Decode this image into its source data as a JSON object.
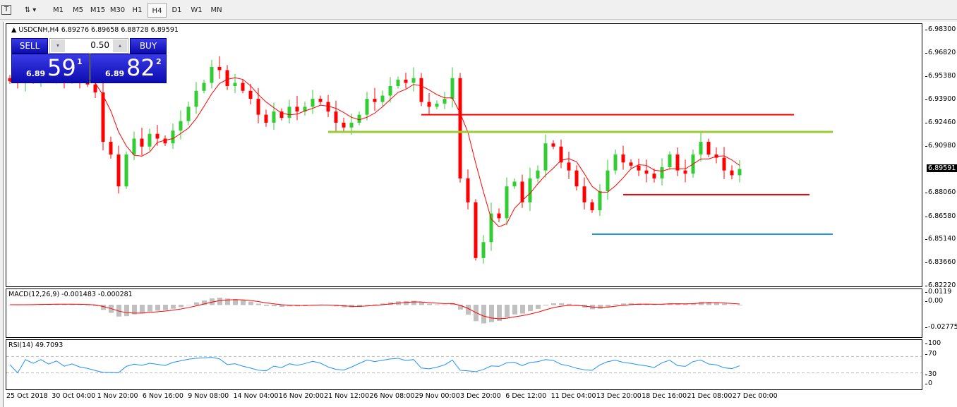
{
  "toolbar": {
    "timeframes": [
      "M1",
      "M5",
      "M15",
      "M30",
      "H1",
      "H4",
      "D1",
      "W1",
      "MN"
    ],
    "active": "H4"
  },
  "chart": {
    "symbol_info": "USDCNH,H4  6.89276 6.89658 6.88728 6.89591",
    "trade_panel": {
      "sell_label": "SELL",
      "buy_label": "BUY",
      "lot": "0.50",
      "sell_big": "6.89",
      "sell_digits": "59",
      "sell_sup": "1",
      "buy_big": "6.89",
      "buy_digits": "82",
      "buy_sup": "2"
    },
    "price_axis": [
      "6.98300",
      "6.96820",
      "6.95380",
      "6.93900",
      "6.92460",
      "6.90980",
      "6.88060",
      "6.86580",
      "6.85140",
      "6.83660",
      "6.82220"
    ],
    "current_price": "6.89591",
    "price_range": [
      6.8222,
      6.983
    ],
    "closes": [
      6.951,
      6.95,
      6.953,
      6.952,
      6.955,
      6.953,
      6.956,
      6.952,
      6.954,
      6.951,
      6.949,
      6.944,
      6.913,
      6.905,
      6.885,
      6.905,
      6.915,
      6.91,
      6.918,
      6.915,
      6.912,
      6.92,
      6.926,
      6.935,
      6.945,
      6.95,
      6.96,
      6.958,
      6.948,
      6.95,
      6.945,
      6.94,
      6.93,
      6.925,
      6.932,
      6.928,
      6.935,
      6.932,
      6.935,
      6.94,
      6.938,
      6.932,
      6.925,
      6.922,
      6.925,
      6.93,
      6.94,
      6.938,
      6.942,
      6.948,
      6.952,
      6.95,
      6.953,
      6.938,
      6.935,
      6.937,
      6.94,
      6.953,
      6.89,
      6.875,
      6.84,
      6.85,
      6.868,
      6.865,
      6.885,
      6.888,
      6.875,
      6.89,
      6.895,
      6.912,
      6.91,
      6.9,
      6.895,
      6.885,
      6.875,
      6.87,
      6.882,
      6.895,
      6.905,
      6.9,
      6.898,
      6.895,
      6.893,
      6.89,
      6.897,
      6.905,
      6.895,
      6.893,
      6.905,
      6.913,
      6.905,
      6.903,
      6.895,
      6.892,
      6.89591
    ],
    "levels": [
      {
        "price": 6.93,
        "color": "#ff0000",
        "from": 53,
        "to": 101
      },
      {
        "price": 6.9192,
        "color": "#9acd32",
        "from": 41,
        "to": 106
      },
      {
        "price": 6.8798,
        "color": "#ff0000",
        "from": 79,
        "to": 103
      },
      {
        "price": 6.855,
        "color": "#1e90ff",
        "from": 75,
        "to": 106
      }
    ],
    "colors": {
      "up": "#32cd32",
      "down": "#ff0000",
      "ma": "#ff0000",
      "rsi": "#1e90ff",
      "macd_hist": "#c0c0c0",
      "macd_signal": "#ff0000"
    }
  },
  "macd": {
    "label": "MACD(12,26,9) -0.001483 -0.000281",
    "axis": [
      "0.0119",
      "0.00",
      "-0.027754"
    ]
  },
  "rsi": {
    "label": "RSI(14) 49.7093",
    "axis": [
      "100",
      "70",
      "30",
      "0"
    ]
  },
  "time_axis": [
    "25 Oct 2018",
    "30 Oct 04:00",
    "1 Nov 20:00",
    "6 Nov 16:00",
    "9 Nov 08:00",
    "14 Nov 04:00",
    "16 Nov 20:00",
    "21 Nov 12:00",
    "26 Nov 08:00",
    "29 Nov 00:00",
    "3 Dec 20:00",
    "6 Dec 12:00",
    "11 Dec 04:00",
    "13 Dec 20:00",
    "18 Dec 16:00",
    "21 Dec 08:00",
    "27 Dec 00:00"
  ]
}
